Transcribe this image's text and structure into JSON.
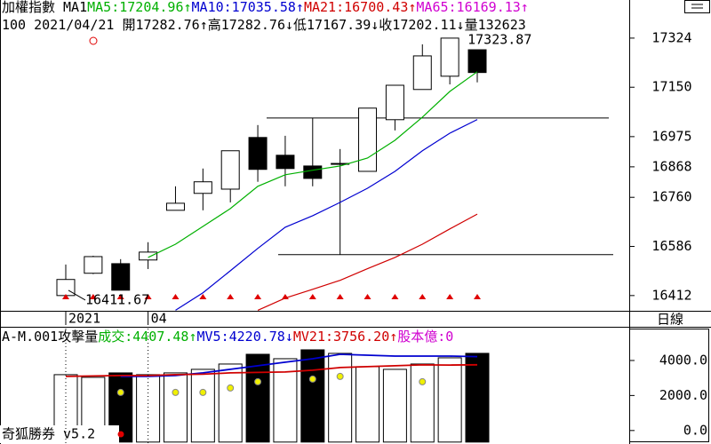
{
  "chart_data": [
    {
      "type": "candlestick",
      "header": [
        [
          {
            "text": "加權指數 MA1",
            "color": "#000000"
          },
          {
            "text": "MA5:17204.96↑",
            "color": "#00b000"
          },
          {
            "text": "MA10:17035.58↑",
            "color": "#0000d0"
          },
          {
            "text": "MA21:16700.43↑",
            "color": "#d00000"
          },
          {
            "text": "MA65:16169.13↑",
            "color": "#d000d0"
          }
        ],
        [
          {
            "text": "100 2021/04/21 開17282.76↑高17282.76↓低17167.39↓收17202.11↓量132623",
            "color": "#000000"
          }
        ]
      ],
      "categories": [
        "2021",
        null,
        null,
        "04",
        null,
        null,
        null,
        null,
        null,
        null,
        null,
        null,
        null,
        null,
        null,
        null
      ],
      "open": [
        16412,
        16491,
        16525,
        16538,
        16714,
        16774,
        16789,
        16972,
        16909,
        16871,
        16880,
        16852,
        17035,
        17142,
        17189,
        17282.76
      ],
      "high": [
        16522,
        16553,
        16541,
        16601,
        16799,
        16862,
        16925,
        17016,
        16978,
        17041,
        16931,
        17076,
        17157,
        17302,
        17323.87,
        17282.76
      ],
      "low": [
        16411.67,
        16488,
        16431,
        16506,
        16714,
        16714,
        16742,
        16815,
        16799,
        16799,
        16557,
        16852,
        16997,
        17142,
        17160,
        17167.39
      ],
      "close": [
        16469,
        16550,
        16431,
        16566,
        16739,
        16815,
        16925,
        16859,
        16862,
        16827,
        16880,
        17076,
        17157,
        17261,
        17324,
        17202.11
      ],
      "series": [
        {
          "color": "#00b000",
          "values": [
            null,
            null,
            null,
            16547,
            16594,
            16657,
            16720,
            16799,
            16840,
            16856,
            16871,
            16899,
            16962,
            17044,
            17135,
            17204.96
          ]
        },
        {
          "color": "#0000d0",
          "values": [
            null,
            null,
            null,
            null,
            16360,
            16422,
            16500,
            16579,
            16654,
            16695,
            16742,
            16792,
            16852,
            16925,
            16987,
            17035.58
          ]
        },
        {
          "color": "#d00000",
          "values": [
            null,
            null,
            null,
            null,
            null,
            null,
            null,
            16360,
            16403,
            16434,
            16466,
            16507,
            16547,
            16594,
            16648,
            16700.43
          ]
        }
      ],
      "levels": [
        17041,
        16557
      ],
      "ylim": [
        16358,
        17459
      ],
      "yticks": [
        17324,
        17150,
        16975,
        16868,
        16760,
        16586,
        16412
      ],
      "period": "日線"
    },
    {
      "type": "bar",
      "header": [
        {
          "text": "A-M.001攻擊量",
          "color": "#000000"
        },
        {
          "text": "成交:4407.48↑",
          "color": "#00b000"
        },
        {
          "text": "MV5:4220.78↓",
          "color": "#0000d0"
        },
        {
          "text": "MV21:3756.20↑",
          "color": "#d00000"
        },
        {
          "text": "股本億:0",
          "color": "#d000d0"
        }
      ],
      "values": [
        3190,
        3038,
        3291,
        3190,
        3291,
        3494,
        3797,
        4354,
        4101,
        4608,
        4405,
        3646,
        3494,
        3797,
        4152,
        4407.48
      ],
      "colors": [
        "#ffffff",
        "#ffffff",
        "#000000",
        "#ffffff",
        "#ffffff",
        "#ffffff",
        "#ffffff",
        "#000000",
        "#ffffff",
        "#000000",
        "#ffffff",
        "#ffffff",
        "#ffffff",
        "#ffffff",
        "#ffffff",
        "#000000"
      ],
      "series": [
        {
          "color": "#0000d0",
          "values": [
            null,
            null,
            3089,
            3089,
            3139,
            3291,
            3494,
            3696,
            3899,
            4101,
            4354,
            4304,
            4253,
            4253,
            4253,
            4220.78
          ]
        },
        {
          "color": "#d00000",
          "values": [
            3089,
            3114,
            3139,
            3139,
            3190,
            3215,
            3291,
            3316,
            3342,
            3443,
            3595,
            3646,
            3696,
            3747,
            3740,
            3756.2
          ]
        }
      ],
      "markers": {
        "color": "#f0f000",
        "values": [
          null,
          null,
          2177,
          null,
          2177,
          2177,
          2430,
          2785,
          null,
          2937,
          3089,
          null,
          null,
          2785,
          null,
          null
        ]
      },
      "ylim": [
        -770,
        5823
      ],
      "yticks": [
        {
          "value": 4000,
          "label": "4000.0"
        },
        {
          "value": 2000,
          "label": "2000.0"
        },
        {
          "value": 0,
          "label": "0.0"
        }
      ],
      "footer": "奇狐勝券 v5.2"
    }
  ]
}
